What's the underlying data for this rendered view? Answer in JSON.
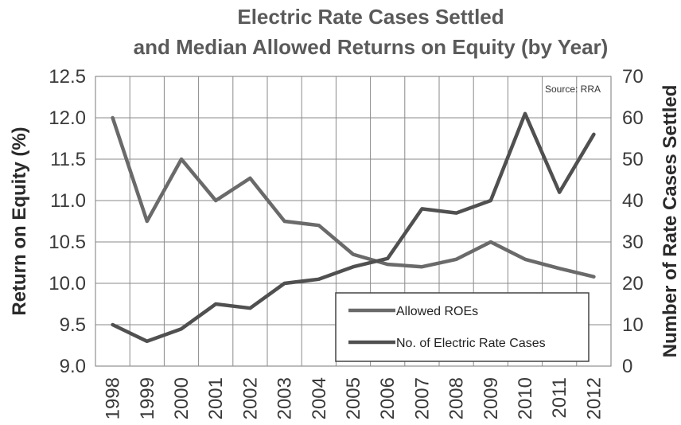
{
  "chart_data": {
    "type": "line",
    "title_line1": "Electric Rate Cases Settled",
    "title_line2": "and Median Allowed Returns on Equity (by Year)",
    "source": "Source: RRA",
    "ylabel_left": "Return on Equity (%)",
    "ylabel_right": "Number of Rate Cases Settled",
    "ylim_left": [
      9.0,
      12.5
    ],
    "ylim_right": [
      0,
      70
    ],
    "yticks_left": [
      "9.0",
      "9.5",
      "10.0",
      "10.5",
      "11.0",
      "11.5",
      "12.0",
      "12.5"
    ],
    "yticks_right": [
      "0",
      "10",
      "20",
      "30",
      "40",
      "50",
      "60",
      "70"
    ],
    "categories": [
      "1998",
      "1999",
      "2000",
      "2001",
      "2002",
      "2003",
      "2004",
      "2005",
      "2006",
      "2007",
      "2008",
      "2009",
      "2010",
      "2011",
      "2012"
    ],
    "grid": true,
    "legend_position": "bottom-right",
    "series": [
      {
        "name": "Allowed ROEs",
        "axis": "left",
        "color": "#6a6a6a",
        "values": [
          12.0,
          10.75,
          11.5,
          11.0,
          11.27,
          10.75,
          10.7,
          10.35,
          10.23,
          10.2,
          10.29,
          10.5,
          10.29,
          10.18,
          10.08
        ]
      },
      {
        "name": "No. of Electric Rate Cases",
        "axis": "right",
        "color": "#505050",
        "values": [
          10,
          6,
          9,
          15,
          14,
          20,
          21,
          24,
          26,
          38,
          37,
          40,
          61,
          42,
          56
        ]
      }
    ]
  }
}
